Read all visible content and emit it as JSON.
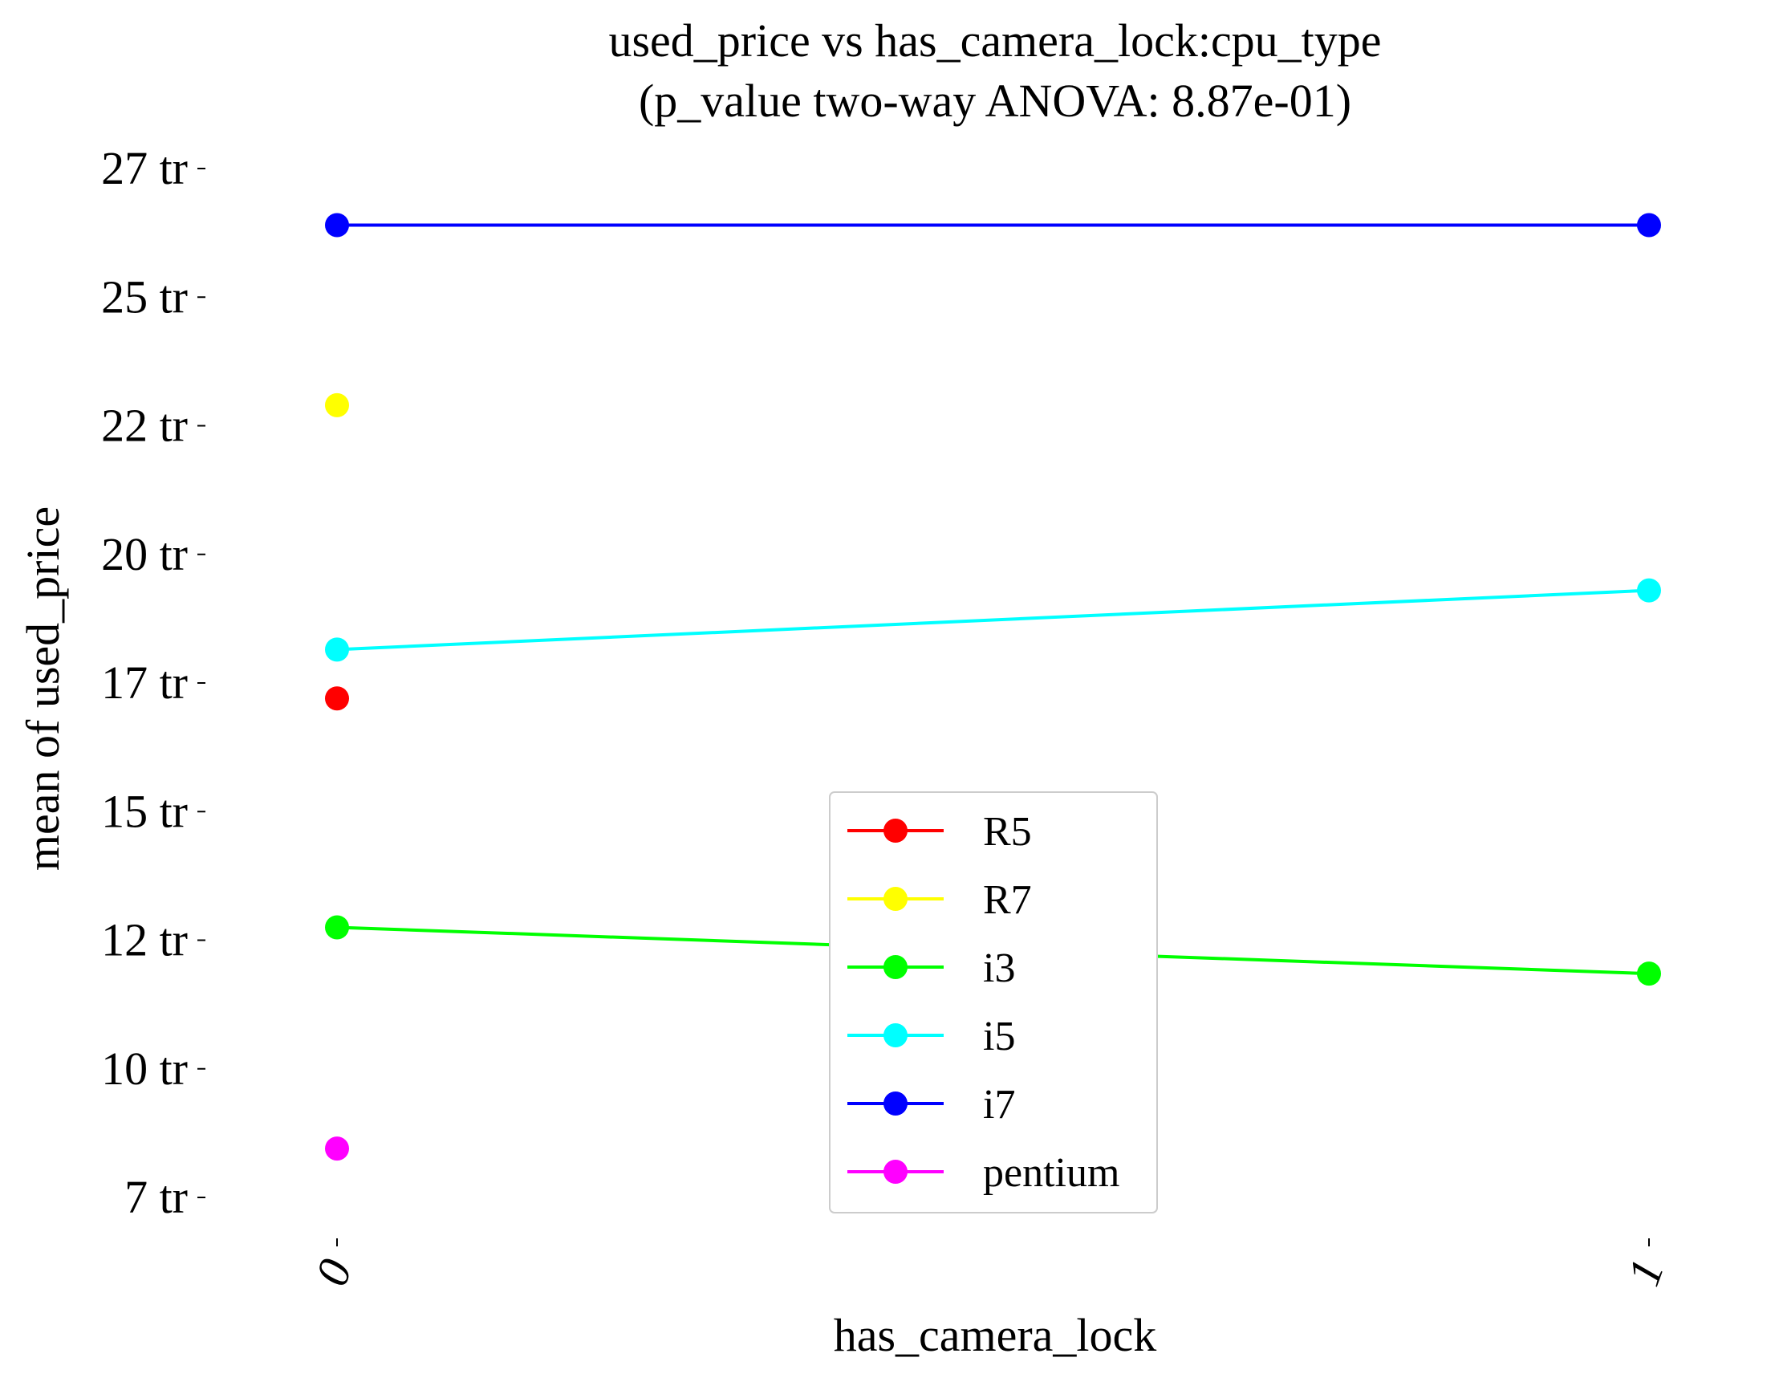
{
  "chart_data": {
    "type": "line",
    "title": "used_price vs has_camera_lock:cpu_type",
    "subtitle": "(p_value two-way ANOVA: 8.87e-01)",
    "xlabel": "has_camera_lock",
    "ylabel": "mean of used_price",
    "categories": [
      "0",
      "1"
    ],
    "y_ticks": [
      {
        "value": 7000000,
        "label": "7 tr"
      },
      {
        "value": 9500000,
        "label": "10 tr"
      },
      {
        "value": 12000000,
        "label": "12 tr"
      },
      {
        "value": 14500000,
        "label": "15 tr"
      },
      {
        "value": 17000000,
        "label": "17 tr"
      },
      {
        "value": 19500000,
        "label": "20 tr"
      },
      {
        "value": 22000000,
        "label": "22 tr"
      },
      {
        "value": 24500000,
        "label": "25 tr"
      },
      {
        "value": 27000000,
        "label": "27 tr"
      }
    ],
    "ylim": [
      6000000,
      27800000
    ],
    "grid": false,
    "legend_position": "lower-center",
    "series": [
      {
        "name": "R5",
        "color": "#ff0000",
        "values": [
          16700000,
          null
        ]
      },
      {
        "name": "R7",
        "color": "#ffff00",
        "values": [
          22400000,
          null
        ]
      },
      {
        "name": "i3",
        "color": "#00ff00",
        "values": [
          12250000,
          11350000
        ]
      },
      {
        "name": "i5",
        "color": "#00ffff",
        "values": [
          17650000,
          18800000
        ]
      },
      {
        "name": "i7",
        "color": "#0000ff",
        "values": [
          25900000,
          25900000
        ]
      },
      {
        "name": "pentium",
        "color": "#ff00ff",
        "values": [
          7950000,
          null
        ]
      }
    ]
  }
}
